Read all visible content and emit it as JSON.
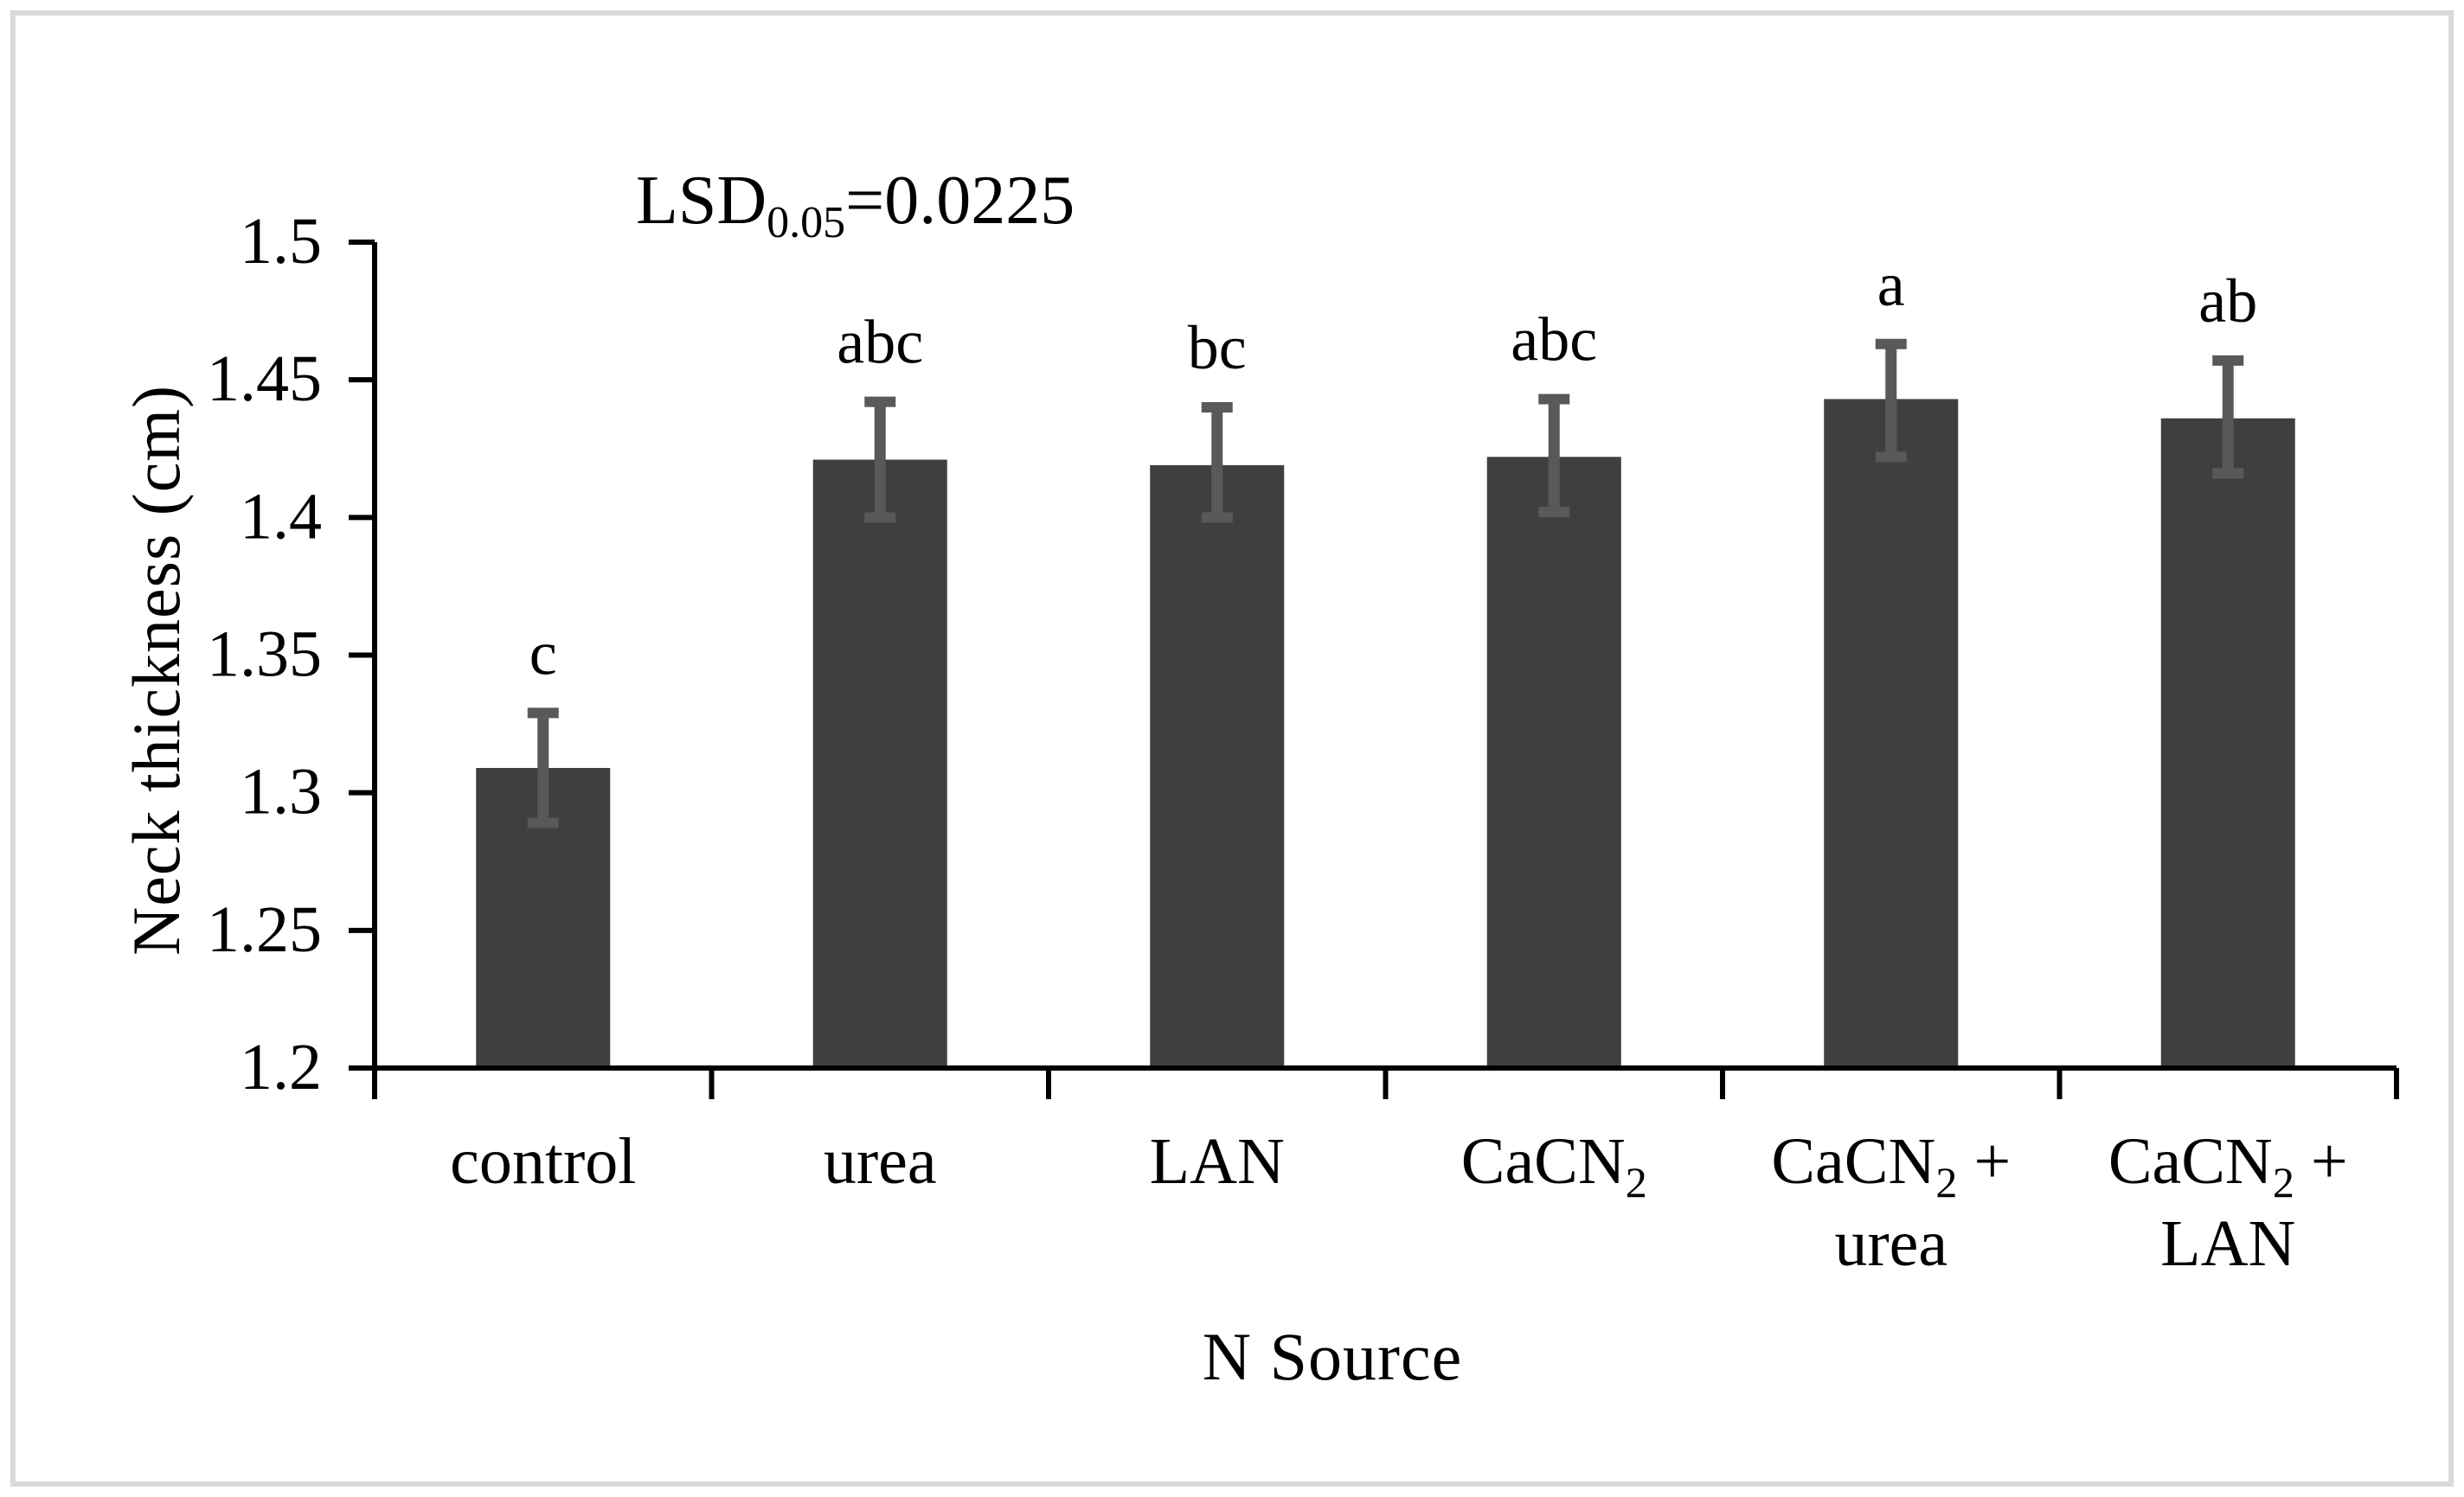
{
  "figure": {
    "background": "#ffffff",
    "border_color": "#d9d9d9"
  },
  "annotation": {
    "label": "LSD",
    "subscript": "0.05",
    "value": "=0.0225"
  },
  "chart_data": {
    "type": "bar",
    "title": "",
    "xlabel": "N Source",
    "ylabel": "Neck thickness (cm)",
    "ylim": [
      1.2,
      1.5
    ],
    "y_ticks": [
      1.2,
      1.25,
      1.3,
      1.35,
      1.4,
      1.45,
      1.5
    ],
    "y_tick_labels": [
      "1.2",
      "1.25",
      "1.3",
      "1.35",
      "1.4",
      "1.45",
      "1.5"
    ],
    "grid": false,
    "legend": false,
    "bar_color": "#3f3f3f",
    "error_bar_color": "#595959",
    "axis_color": "#000000",
    "categories": [
      "control",
      "urea",
      "LAN",
      "CaCN₂",
      "CaCN₂ + urea",
      "CaCN₂ + LAN"
    ],
    "category_display_lines": [
      [
        [
          {
            "t": "control",
            "sub": false
          }
        ]
      ],
      [
        [
          {
            "t": "urea",
            "sub": false
          }
        ]
      ],
      [
        [
          {
            "t": "LAN",
            "sub": false
          }
        ]
      ],
      [
        [
          {
            "t": "CaCN",
            "sub": false
          },
          {
            "t": "2",
            "sub": true
          }
        ]
      ],
      [
        [
          {
            "t": "CaCN",
            "sub": false
          },
          {
            "t": "2",
            "sub": true
          },
          {
            "t": " +",
            "sub": false
          }
        ],
        [
          {
            "t": "urea",
            "sub": false
          }
        ]
      ],
      [
        [
          {
            "t": "CaCN",
            "sub": false
          },
          {
            "t": "2",
            "sub": true
          },
          {
            "t": " +",
            "sub": false
          }
        ],
        [
          {
            "t": "LAN",
            "sub": false
          }
        ]
      ]
    ],
    "values": [
      1.309,
      1.421,
      1.419,
      1.422,
      1.443,
      1.436
    ],
    "error_up": [
      0.02,
      0.021,
      0.021,
      0.021,
      0.02,
      0.021
    ],
    "error_down": [
      0.02,
      0.021,
      0.019,
      0.02,
      0.021,
      0.02
    ],
    "sig_letters": [
      "c",
      "abc",
      "bc",
      "abc",
      "a",
      "ab"
    ],
    "annotation_text": "LSD0.05=0.0225"
  }
}
